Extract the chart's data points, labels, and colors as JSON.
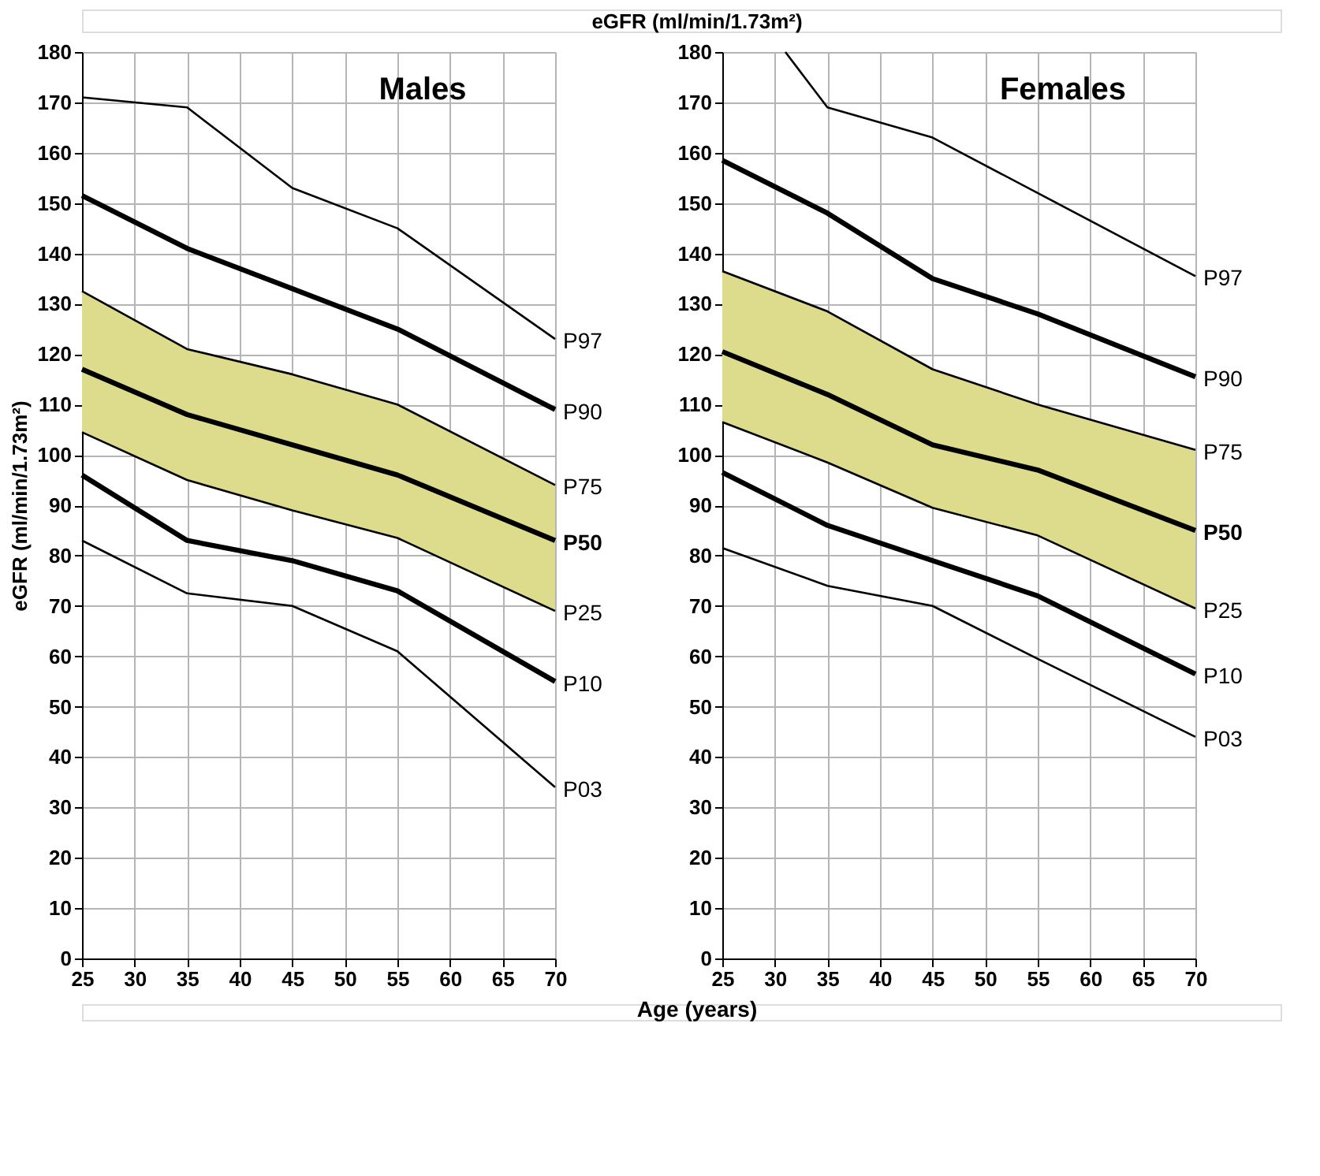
{
  "chart_data": [
    {
      "type": "line",
      "title": "Males",
      "annotations": [
        "eGFR (ml/min/1.73m²)"
      ],
      "xlabel": "Age (years)",
      "ylabel": "eGFR (ml/min/1.73m²)",
      "x": [
        25,
        35,
        45,
        55,
        70
      ],
      "xlim": [
        25,
        70
      ],
      "xticks": [
        25,
        30,
        35,
        40,
        45,
        50,
        55,
        60,
        65,
        70
      ],
      "ylim": [
        0,
        180
      ],
      "yticks": [
        0,
        10,
        20,
        30,
        40,
        50,
        60,
        70,
        80,
        90,
        100,
        110,
        120,
        130,
        140,
        150,
        160,
        170,
        180
      ],
      "grid": true,
      "legend": false,
      "marker": "none",
      "series": [
        {
          "name": "P97",
          "color": "#000000",
          "values": [
            171,
            169,
            153,
            145,
            123
          ]
        },
        {
          "name": "P90",
          "color": "#000000",
          "values": [
            151.5,
            141,
            133,
            125,
            109
          ]
        },
        {
          "name": "P75",
          "color": "#000000",
          "values": [
            132.5,
            121,
            116,
            110,
            94
          ]
        },
        {
          "name": "P50",
          "color": "#000000",
          "values": [
            117,
            108,
            102,
            96,
            83
          ],
          "lower": [
            104.5,
            95,
            89,
            83.5,
            69
          ],
          "upper": [
            132.5,
            121,
            116,
            110,
            94
          ]
        },
        {
          "name": "P25",
          "color": "#000000",
          "values": [
            104.5,
            95,
            89,
            83.5,
            69
          ]
        },
        {
          "name": "P10",
          "color": "#000000",
          "values": [
            96,
            83,
            79,
            73,
            55
          ]
        },
        {
          "name": "P03",
          "color": "#000000",
          "values": [
            83,
            72.5,
            70,
            61,
            34
          ]
        }
      ]
    },
    {
      "type": "line",
      "title": "Females",
      "x": [
        25,
        35,
        45,
        55,
        70
      ],
      "xlim": [
        25,
        70
      ],
      "xticks": [
        25,
        30,
        35,
        40,
        45,
        50,
        55,
        60,
        65,
        70
      ],
      "ylim": [
        0,
        180
      ],
      "yticks": [
        0,
        10,
        20,
        30,
        40,
        50,
        60,
        70,
        80,
        90,
        100,
        110,
        120,
        130,
        140,
        150,
        160,
        170,
        180
      ],
      "grid": true,
      "legend": false,
      "marker": "none",
      "series": [
        {
          "name": "P97",
          "color": "#000000",
          "x": [
            31,
            35,
            45,
            55,
            70
          ],
          "values": [
            180,
            169,
            163,
            152,
            135.5
          ]
        },
        {
          "name": "P90",
          "color": "#000000",
          "values": [
            158.5,
            148,
            135,
            128,
            115.5
          ]
        },
        {
          "name": "P75",
          "color": "#000000",
          "values": [
            136.5,
            128.5,
            117,
            110,
            101
          ]
        },
        {
          "name": "P50",
          "color": "#000000",
          "values": [
            120.5,
            112,
            102,
            97,
            85
          ],
          "lower": [
            106.5,
            98.5,
            89.5,
            84,
            69.5
          ],
          "upper": [
            136.5,
            128.5,
            117,
            110,
            101
          ]
        },
        {
          "name": "P25",
          "color": "#000000",
          "values": [
            106.5,
            98.5,
            89.5,
            84,
            69.5
          ]
        },
        {
          "name": "P10",
          "color": "#000000",
          "values": [
            96.5,
            86,
            79,
            72,
            56.5
          ]
        },
        {
          "name": "P03",
          "color": "#000000",
          "values": [
            81.5,
            74,
            70,
            59.5,
            44
          ]
        }
      ]
    }
  ]
}
